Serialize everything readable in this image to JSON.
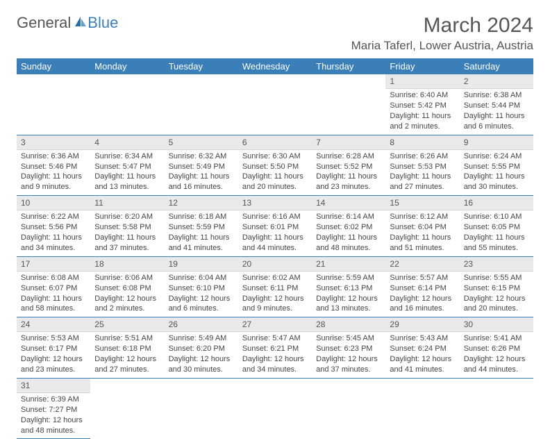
{
  "brand": {
    "part1": "General",
    "part2": "Blue"
  },
  "title": "March 2024",
  "location": "Maria Taferl, Lower Austria, Austria",
  "colors": {
    "header_bg": "#3b7fb8",
    "header_fg": "#ffffff",
    "daynum_bg": "#e9e9e9",
    "rule": "#3b7fb8",
    "text": "#444444"
  },
  "typography": {
    "title_fontsize": 30,
    "location_fontsize": 17,
    "weekday_fontsize": 13,
    "daynum_fontsize": 12,
    "body_fontsize": 11
  },
  "weekdays": [
    "Sunday",
    "Monday",
    "Tuesday",
    "Wednesday",
    "Thursday",
    "Friday",
    "Saturday"
  ],
  "weeks": [
    [
      null,
      null,
      null,
      null,
      null,
      {
        "n": "1",
        "sunrise": "Sunrise: 6:40 AM",
        "sunset": "Sunset: 5:42 PM",
        "daylight": "Daylight: 11 hours and 2 minutes."
      },
      {
        "n": "2",
        "sunrise": "Sunrise: 6:38 AM",
        "sunset": "Sunset: 5:44 PM",
        "daylight": "Daylight: 11 hours and 6 minutes."
      }
    ],
    [
      {
        "n": "3",
        "sunrise": "Sunrise: 6:36 AM",
        "sunset": "Sunset: 5:46 PM",
        "daylight": "Daylight: 11 hours and 9 minutes."
      },
      {
        "n": "4",
        "sunrise": "Sunrise: 6:34 AM",
        "sunset": "Sunset: 5:47 PM",
        "daylight": "Daylight: 11 hours and 13 minutes."
      },
      {
        "n": "5",
        "sunrise": "Sunrise: 6:32 AM",
        "sunset": "Sunset: 5:49 PM",
        "daylight": "Daylight: 11 hours and 16 minutes."
      },
      {
        "n": "6",
        "sunrise": "Sunrise: 6:30 AM",
        "sunset": "Sunset: 5:50 PM",
        "daylight": "Daylight: 11 hours and 20 minutes."
      },
      {
        "n": "7",
        "sunrise": "Sunrise: 6:28 AM",
        "sunset": "Sunset: 5:52 PM",
        "daylight": "Daylight: 11 hours and 23 minutes."
      },
      {
        "n": "8",
        "sunrise": "Sunrise: 6:26 AM",
        "sunset": "Sunset: 5:53 PM",
        "daylight": "Daylight: 11 hours and 27 minutes."
      },
      {
        "n": "9",
        "sunrise": "Sunrise: 6:24 AM",
        "sunset": "Sunset: 5:55 PM",
        "daylight": "Daylight: 11 hours and 30 minutes."
      }
    ],
    [
      {
        "n": "10",
        "sunrise": "Sunrise: 6:22 AM",
        "sunset": "Sunset: 5:56 PM",
        "daylight": "Daylight: 11 hours and 34 minutes."
      },
      {
        "n": "11",
        "sunrise": "Sunrise: 6:20 AM",
        "sunset": "Sunset: 5:58 PM",
        "daylight": "Daylight: 11 hours and 37 minutes."
      },
      {
        "n": "12",
        "sunrise": "Sunrise: 6:18 AM",
        "sunset": "Sunset: 5:59 PM",
        "daylight": "Daylight: 11 hours and 41 minutes."
      },
      {
        "n": "13",
        "sunrise": "Sunrise: 6:16 AM",
        "sunset": "Sunset: 6:01 PM",
        "daylight": "Daylight: 11 hours and 44 minutes."
      },
      {
        "n": "14",
        "sunrise": "Sunrise: 6:14 AM",
        "sunset": "Sunset: 6:02 PM",
        "daylight": "Daylight: 11 hours and 48 minutes."
      },
      {
        "n": "15",
        "sunrise": "Sunrise: 6:12 AM",
        "sunset": "Sunset: 6:04 PM",
        "daylight": "Daylight: 11 hours and 51 minutes."
      },
      {
        "n": "16",
        "sunrise": "Sunrise: 6:10 AM",
        "sunset": "Sunset: 6:05 PM",
        "daylight": "Daylight: 11 hours and 55 minutes."
      }
    ],
    [
      {
        "n": "17",
        "sunrise": "Sunrise: 6:08 AM",
        "sunset": "Sunset: 6:07 PM",
        "daylight": "Daylight: 11 hours and 58 minutes."
      },
      {
        "n": "18",
        "sunrise": "Sunrise: 6:06 AM",
        "sunset": "Sunset: 6:08 PM",
        "daylight": "Daylight: 12 hours and 2 minutes."
      },
      {
        "n": "19",
        "sunrise": "Sunrise: 6:04 AM",
        "sunset": "Sunset: 6:10 PM",
        "daylight": "Daylight: 12 hours and 6 minutes."
      },
      {
        "n": "20",
        "sunrise": "Sunrise: 6:02 AM",
        "sunset": "Sunset: 6:11 PM",
        "daylight": "Daylight: 12 hours and 9 minutes."
      },
      {
        "n": "21",
        "sunrise": "Sunrise: 5:59 AM",
        "sunset": "Sunset: 6:13 PM",
        "daylight": "Daylight: 12 hours and 13 minutes."
      },
      {
        "n": "22",
        "sunrise": "Sunrise: 5:57 AM",
        "sunset": "Sunset: 6:14 PM",
        "daylight": "Daylight: 12 hours and 16 minutes."
      },
      {
        "n": "23",
        "sunrise": "Sunrise: 5:55 AM",
        "sunset": "Sunset: 6:15 PM",
        "daylight": "Daylight: 12 hours and 20 minutes."
      }
    ],
    [
      {
        "n": "24",
        "sunrise": "Sunrise: 5:53 AM",
        "sunset": "Sunset: 6:17 PM",
        "daylight": "Daylight: 12 hours and 23 minutes."
      },
      {
        "n": "25",
        "sunrise": "Sunrise: 5:51 AM",
        "sunset": "Sunset: 6:18 PM",
        "daylight": "Daylight: 12 hours and 27 minutes."
      },
      {
        "n": "26",
        "sunrise": "Sunrise: 5:49 AM",
        "sunset": "Sunset: 6:20 PM",
        "daylight": "Daylight: 12 hours and 30 minutes."
      },
      {
        "n": "27",
        "sunrise": "Sunrise: 5:47 AM",
        "sunset": "Sunset: 6:21 PM",
        "daylight": "Daylight: 12 hours and 34 minutes."
      },
      {
        "n": "28",
        "sunrise": "Sunrise: 5:45 AM",
        "sunset": "Sunset: 6:23 PM",
        "daylight": "Daylight: 12 hours and 37 minutes."
      },
      {
        "n": "29",
        "sunrise": "Sunrise: 5:43 AM",
        "sunset": "Sunset: 6:24 PM",
        "daylight": "Daylight: 12 hours and 41 minutes."
      },
      {
        "n": "30",
        "sunrise": "Sunrise: 5:41 AM",
        "sunset": "Sunset: 6:26 PM",
        "daylight": "Daylight: 12 hours and 44 minutes."
      }
    ],
    [
      {
        "n": "31",
        "sunrise": "Sunrise: 6:39 AM",
        "sunset": "Sunset: 7:27 PM",
        "daylight": "Daylight: 12 hours and 48 minutes."
      },
      null,
      null,
      null,
      null,
      null,
      null
    ]
  ]
}
